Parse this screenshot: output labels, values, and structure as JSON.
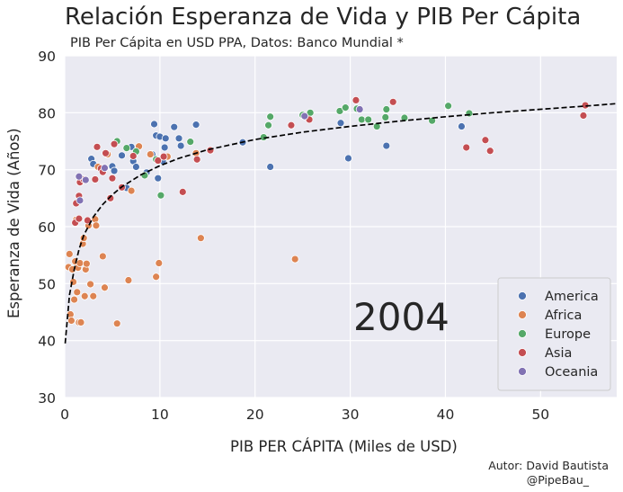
{
  "title": "Relación Esperanza de Vida y PIB Per Cápita",
  "subtitle": "PIB Per Cápita en USD PPA, Datos: Banco Mundial *",
  "author_line1": "Autor: David Bautista",
  "author_line2": "@PipeBau_",
  "colors": {
    "plot_bg": "#eaeaf2",
    "grid": "#ffffff",
    "America": "#4c72b0",
    "Africa": "#dd8452",
    "Europe": "#55a868",
    "Asia": "#c44e52",
    "Oceania": "#8172b3",
    "trend": "#000000"
  },
  "chart_data": {
    "type": "scatter",
    "title": "Relación Esperanza de Vida y PIB Per Cápita",
    "xlabel": "PIB PER CÁPITA (Miles de USD)",
    "ylabel": "Esperanza de Vida (Años)",
    "xlim": [
      0,
      58
    ],
    "ylim": [
      30,
      90
    ],
    "xticks": [
      0,
      10,
      20,
      30,
      40,
      50
    ],
    "yticks": [
      30,
      40,
      50,
      60,
      70,
      80,
      90
    ],
    "year_annotation": "2004",
    "legend_position": "lower-right",
    "legend": [
      "America",
      "Africa",
      "Europe",
      "Asia",
      "Oceania"
    ],
    "trendline": {
      "style": "dashed",
      "x": [
        0.05,
        0.5,
        1,
        1.5,
        2,
        3,
        4,
        5,
        6,
        8,
        10,
        12,
        15,
        20,
        25,
        30,
        35,
        40,
        45,
        50,
        55,
        58
      ],
      "y": [
        39.5,
        48,
        52.5,
        56,
        58.5,
        61.7,
        63.9,
        65.6,
        67,
        69.1,
        70.7,
        72,
        73.5,
        75.3,
        76.6,
        77.6,
        78.5,
        79.3,
        80,
        80.6,
        81.2,
        81.6
      ]
    },
    "series": [
      {
        "name": "America",
        "points": [
          [
            2.8,
            71.9
          ],
          [
            3.0,
            71.0
          ],
          [
            4.0,
            70.3
          ],
          [
            5.0,
            70.6
          ],
          [
            5.2,
            69.8
          ],
          [
            6.0,
            72.5
          ],
          [
            6.5,
            66.8
          ],
          [
            7.0,
            74.0
          ],
          [
            7.2,
            71.5
          ],
          [
            7.5,
            70.5
          ],
          [
            8.6,
            69.5
          ],
          [
            9.2,
            72.7
          ],
          [
            9.4,
            78.0
          ],
          [
            9.6,
            76.0
          ],
          [
            9.8,
            68.5
          ],
          [
            10.0,
            75.8
          ],
          [
            10.3,
            71.5
          ],
          [
            10.5,
            73.9
          ],
          [
            10.6,
            75.5
          ],
          [
            11.5,
            77.5
          ],
          [
            12.0,
            75.5
          ],
          [
            12.2,
            74.2
          ],
          [
            13.8,
            77.9
          ],
          [
            18.7,
            74.8
          ],
          [
            21.6,
            70.5
          ],
          [
            29.0,
            78.2
          ],
          [
            29.8,
            72.0
          ],
          [
            33.8,
            74.2
          ],
          [
            41.7,
            77.6
          ]
        ]
      },
      {
        "name": "Africa",
        "points": [
          [
            0.4,
            52.9
          ],
          [
            0.5,
            55.2
          ],
          [
            0.6,
            44.6
          ],
          [
            0.7,
            43.5
          ],
          [
            0.8,
            52.5
          ],
          [
            0.9,
            50.3
          ],
          [
            1.0,
            47.2
          ],
          [
            1.1,
            53.9
          ],
          [
            1.2,
            61.2
          ],
          [
            1.3,
            48.5
          ],
          [
            1.4,
            52.8
          ],
          [
            1.5,
            43.2
          ],
          [
            1.6,
            53.6
          ],
          [
            1.7,
            43.2
          ],
          [
            1.9,
            57.0
          ],
          [
            2.0,
            58.0
          ],
          [
            2.1,
            47.8
          ],
          [
            2.2,
            52.5
          ],
          [
            2.3,
            53.5
          ],
          [
            2.5,
            60.2
          ],
          [
            2.7,
            49.9
          ],
          [
            3.0,
            47.8
          ],
          [
            3.2,
            61.3
          ],
          [
            3.3,
            60.2
          ],
          [
            3.5,
            70.5
          ],
          [
            4.0,
            54.8
          ],
          [
            4.2,
            49.3
          ],
          [
            4.5,
            72.7
          ],
          [
            5.5,
            43.0
          ],
          [
            6.7,
            50.6
          ],
          [
            7.0,
            66.3
          ],
          [
            7.8,
            74.1
          ],
          [
            9.0,
            72.7
          ],
          [
            9.6,
            51.2
          ],
          [
            9.9,
            53.6
          ],
          [
            10.8,
            72.3
          ],
          [
            13.8,
            72.9
          ],
          [
            14.3,
            58.0
          ],
          [
            24.2,
            54.3
          ]
        ]
      },
      {
        "name": "Europe",
        "points": [
          [
            5.5,
            75.0
          ],
          [
            6.5,
            73.8
          ],
          [
            7.5,
            73.2
          ],
          [
            8.4,
            69.0
          ],
          [
            9.6,
            71.8
          ],
          [
            10.1,
            65.5
          ],
          [
            13.2,
            74.9
          ],
          [
            20.9,
            75.7
          ],
          [
            21.4,
            77.8
          ],
          [
            21.6,
            79.3
          ],
          [
            25.0,
            79.6
          ],
          [
            25.8,
            80.0
          ],
          [
            28.9,
            80.3
          ],
          [
            29.5,
            80.9
          ],
          [
            30.7,
            80.7
          ],
          [
            31.2,
            78.8
          ],
          [
            31.9,
            78.8
          ],
          [
            32.8,
            77.6
          ],
          [
            33.7,
            79.2
          ],
          [
            33.8,
            80.6
          ],
          [
            35.7,
            79.1
          ],
          [
            38.6,
            78.6
          ],
          [
            40.3,
            81.2
          ],
          [
            42.5,
            79.9
          ]
        ]
      },
      {
        "name": "Asia",
        "points": [
          [
            1.1,
            60.7
          ],
          [
            1.2,
            64.1
          ],
          [
            1.5,
            61.4
          ],
          [
            1.5,
            65.4
          ],
          [
            1.6,
            67.8
          ],
          [
            2.0,
            68.3
          ],
          [
            2.4,
            61.1
          ],
          [
            3.2,
            68.3
          ],
          [
            3.4,
            74.0
          ],
          [
            3.8,
            70.2
          ],
          [
            4.0,
            69.6
          ],
          [
            4.3,
            72.9
          ],
          [
            4.8,
            65.0
          ],
          [
            5.0,
            68.5
          ],
          [
            5.2,
            74.5
          ],
          [
            6.0,
            66.9
          ],
          [
            7.2,
            72.4
          ],
          [
            9.8,
            71.6
          ],
          [
            10.4,
            72.3
          ],
          [
            12.4,
            66.1
          ],
          [
            13.9,
            71.8
          ],
          [
            15.3,
            73.4
          ],
          [
            23.8,
            77.8
          ],
          [
            25.7,
            78.8
          ],
          [
            30.6,
            82.2
          ],
          [
            34.5,
            81.9
          ],
          [
            42.2,
            73.9
          ],
          [
            44.2,
            75.2
          ],
          [
            44.7,
            73.3
          ],
          [
            54.5,
            79.5
          ],
          [
            54.7,
            81.3
          ]
        ]
      },
      {
        "name": "Oceania",
        "points": [
          [
            1.5,
            68.8
          ],
          [
            1.6,
            64.6
          ],
          [
            2.2,
            68.2
          ],
          [
            4.2,
            70.3
          ],
          [
            25.2,
            79.4
          ],
          [
            31.0,
            80.6
          ]
        ]
      }
    ]
  }
}
